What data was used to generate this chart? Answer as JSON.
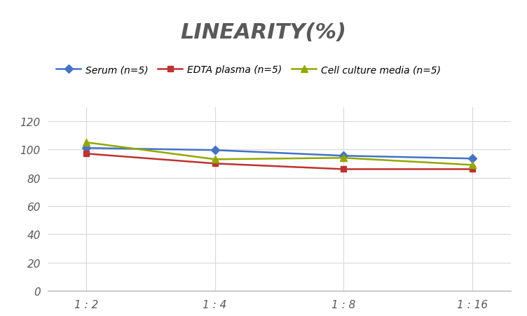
{
  "title": "LINEARITY(%)",
  "title_fontsize": 22,
  "title_fontstyle": "italic",
  "title_fontweight": "bold",
  "title_color": "#595959",
  "x_labels": [
    "1 : 2",
    "1 : 4",
    "1 : 8",
    "1 : 16"
  ],
  "x_positions": [
    0,
    1,
    2,
    3
  ],
  "series": [
    {
      "label": "Serum (n=5)",
      "values": [
        101,
        99.5,
        95.5,
        93.5
      ],
      "color": "#4472C4",
      "marker": "D",
      "markersize": 6,
      "linewidth": 1.8
    },
    {
      "label": "EDTA plasma (n=5)",
      "values": [
        97,
        90,
        86,
        86
      ],
      "color": "#BE3232",
      "marker": "s",
      "markersize": 6,
      "linewidth": 1.8
    },
    {
      "label": "Cell culture media (n=5)",
      "values": [
        105,
        93,
        94,
        89
      ],
      "color": "#92A800",
      "marker": "^",
      "markersize": 7,
      "linewidth": 1.8
    }
  ],
  "ylim": [
    0,
    130
  ],
  "yticks": [
    0,
    20,
    40,
    60,
    80,
    100,
    120
  ],
  "grid_color": "#D8D8D8",
  "background_color": "#FFFFFF",
  "legend_fontsize": 10,
  "tick_fontsize": 11,
  "axis_label_color": "#595959"
}
